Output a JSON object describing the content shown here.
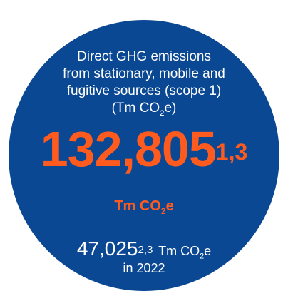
{
  "description": {
    "lines": [
      "Direct GHG emissions",
      "from stationary, mobile and",
      "fugitive sources (scope 1)"
    ],
    "unit": {
      "prefix": "(Tm CO",
      "subscript": "2",
      "suffix": "e)"
    }
  },
  "main": {
    "value": "132,805",
    "note": "1,3",
    "unit": {
      "prefix": "Tm CO",
      "subscript": "2",
      "suffix": "e"
    }
  },
  "previous": {
    "value": "47,025",
    "note": "2,3",
    "unit": {
      "prefix": "Tm CO",
      "subscript": "2",
      "suffix": "e"
    },
    "period": "in 2022"
  }
}
